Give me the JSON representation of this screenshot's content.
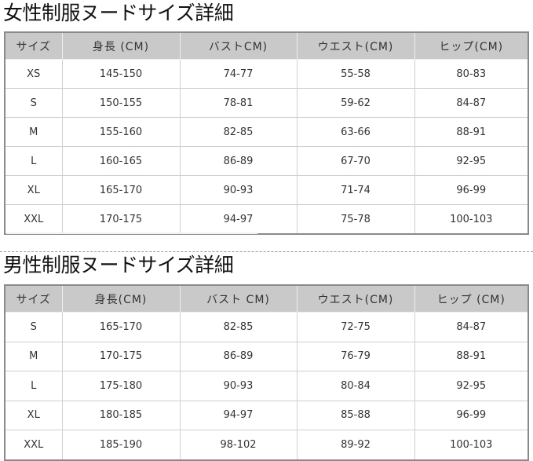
{
  "women": {
    "title": "女性制服ヌードサイズ詳細",
    "headers": [
      "サイズ",
      "身長 (CM)",
      "バストCM)",
      "ウエスト(CM)",
      "ヒップ(CM)"
    ],
    "rows": [
      [
        "XS",
        "145-150",
        "74-77",
        "55-58",
        "80-83"
      ],
      [
        "S",
        "150-155",
        "78-81",
        "59-62",
        "84-87"
      ],
      [
        "M",
        "155-160",
        "82-85",
        "63-66",
        "88-91"
      ],
      [
        "L",
        "160-165",
        "86-89",
        "67-70",
        "92-95"
      ],
      [
        "XL",
        "165-170",
        "90-93",
        "71-74",
        "96-99"
      ],
      [
        "XXL",
        "170-175",
        "94-97",
        "75-78",
        "100-103"
      ]
    ]
  },
  "men": {
    "title": "男性制服ヌードサイズ詳細",
    "headers": [
      "サイズ",
      "身長(CM)",
      "バスト CM)",
      "ウエスト(CM)",
      "ヒップ (CM)"
    ],
    "rows": [
      [
        "S",
        "165-170",
        "82-85",
        "72-75",
        "84-87"
      ],
      [
        "M",
        "170-175",
        "86-89",
        "76-79",
        "88-91"
      ],
      [
        "L",
        "175-180",
        "90-93",
        "80-84",
        "92-95"
      ],
      [
        "XL",
        "180-185",
        "94-97",
        "85-88",
        "96-99"
      ],
      [
        "XXL",
        "185-190",
        "98-102",
        "89-92",
        "100-103"
      ]
    ]
  }
}
